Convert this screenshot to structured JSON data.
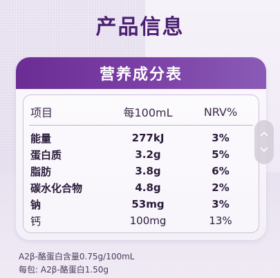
{
  "title": "产品信息",
  "card": {
    "header": "营养成分表",
    "columns": [
      "项目",
      "每100mL",
      "NRV%"
    ],
    "rows": [
      {
        "item": "能量",
        "amount": "277kJ",
        "nrv": "3%"
      },
      {
        "item": "蛋白质",
        "amount": "3.2g",
        "nrv": "5%"
      },
      {
        "item": "脂肪",
        "amount": "3.8g",
        "nrv": "6%"
      },
      {
        "item": "碳水化合物",
        "amount": "4.8g",
        "nrv": "2%"
      },
      {
        "item": "钠",
        "amount": "53mg",
        "nrv": "3%"
      },
      {
        "item": "钙",
        "amount": "100mg",
        "nrv": "13%"
      }
    ]
  },
  "footnotes": [
    "A2β-酪蛋白含量0.75g/100mL",
    "每包: A2β-酪蛋白1.50g"
  ],
  "scroll": {
    "up_icon": "chevron-up-icon",
    "down_icon": "chevron-down-icon"
  },
  "colors": {
    "title": "#4a1f72",
    "header_bg": "#6b2d94",
    "text": "#2a1a3a"
  }
}
